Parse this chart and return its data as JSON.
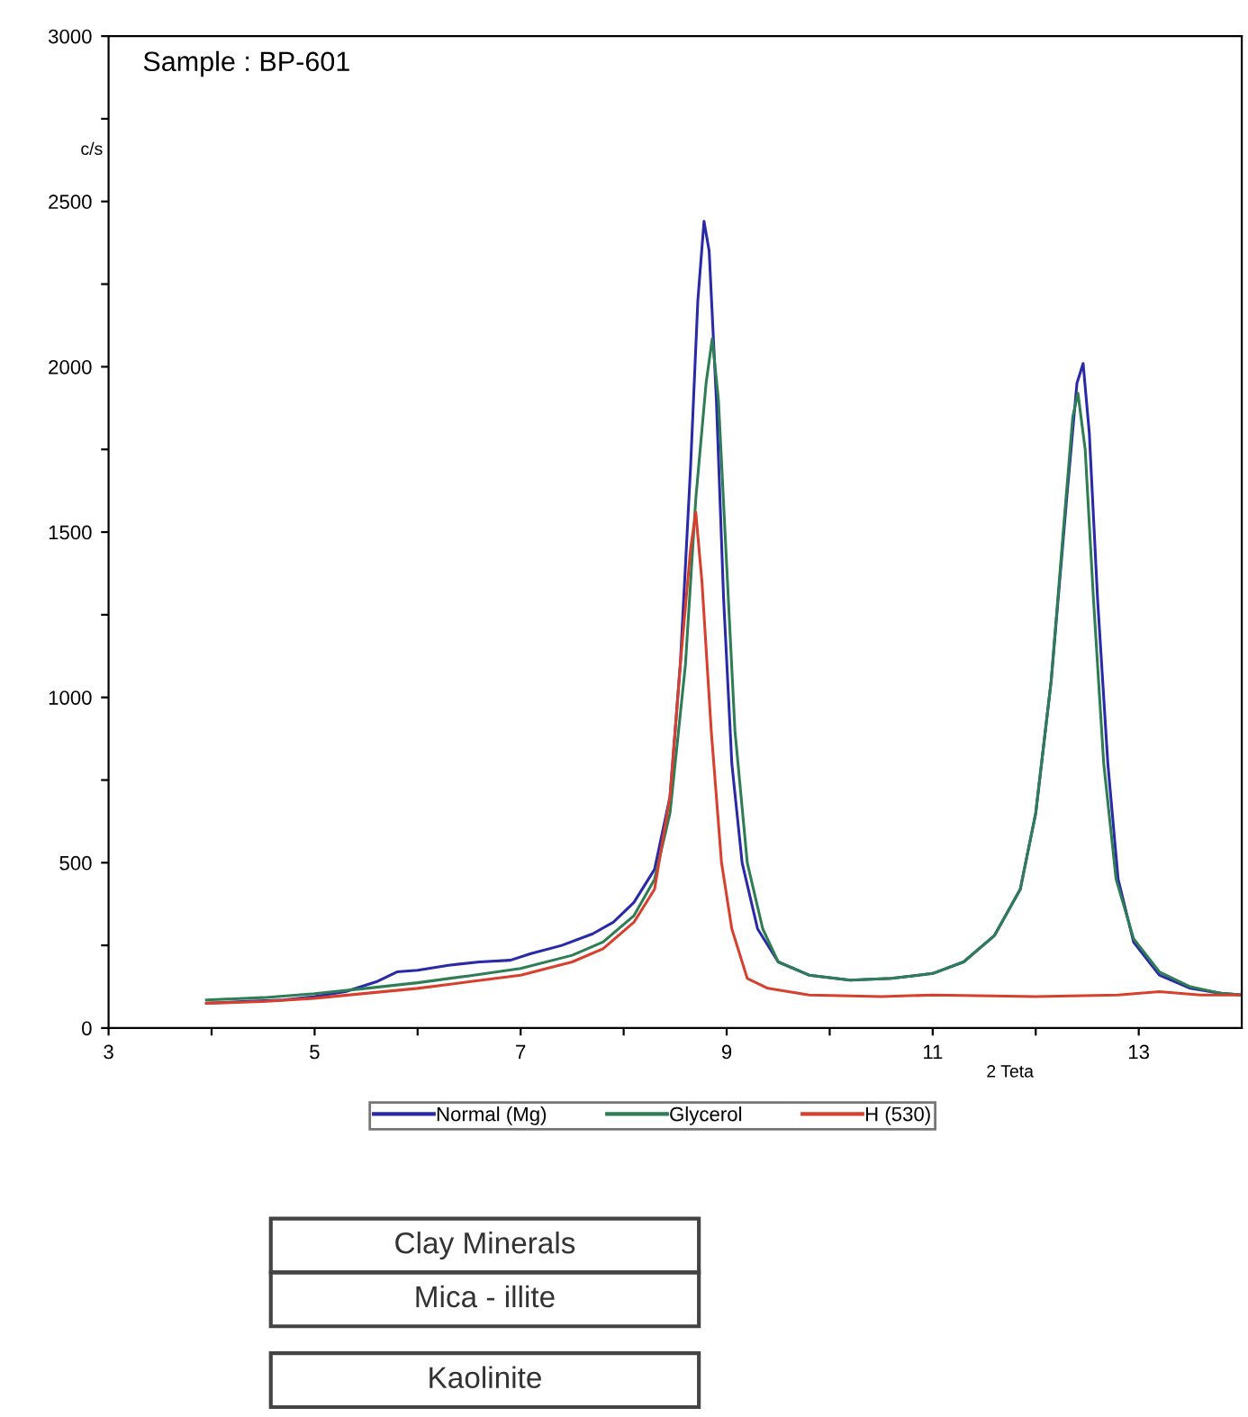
{
  "chart_data": {
    "type": "line",
    "title": "Sample : BP-601",
    "xlabel": "2 Teta",
    "ylabel": "c/s",
    "xlim": [
      3,
      14
    ],
    "ylim": [
      0,
      3000
    ],
    "xticks": [
      3,
      {
        "value": 4,
        "label": null
      },
      5,
      {
        "value": 6,
        "label": null
      },
      7,
      {
        "value": 8,
        "label": null
      },
      9,
      {
        "value": 10,
        "label": null
      },
      11,
      {
        "value": 12,
        "label": null
      },
      13
    ],
    "yticks": [
      0,
      {
        "value": 250,
        "label": null
      },
      500,
      {
        "value": 750,
        "label": null
      },
      1000,
      {
        "value": 1250,
        "label": null
      },
      1500,
      {
        "value": 1750,
        "label": null
      },
      2000,
      {
        "value": 2250,
        "label": null
      },
      2500,
      {
        "value": 2750,
        "label": null
      },
      3000
    ],
    "grid": false,
    "legend": "bottom",
    "marker": "none",
    "line_style": "solid",
    "annotations": [
      "Clay Minerals",
      "Mica - illite",
      "Kaolinite"
    ],
    "series": [
      {
        "name": "Normal (Mg)",
        "color": "#2a2aa8",
        "x": [
          3.95,
          4.3,
          4.7,
          5.0,
          5.3,
          5.6,
          5.8,
          6.0,
          6.3,
          6.6,
          6.9,
          7.1,
          7.4,
          7.7,
          7.9,
          8.1,
          8.3,
          8.45,
          8.55,
          8.65,
          8.72,
          8.78,
          8.83,
          8.9,
          8.97,
          9.05,
          9.15,
          9.3,
          9.5,
          9.8,
          10.2,
          10.6,
          11.0,
          11.3,
          11.6,
          11.85,
          12.0,
          12.15,
          12.3,
          12.4,
          12.46,
          12.52,
          12.6,
          12.7,
          12.8,
          12.95,
          13.2,
          13.5,
          13.8,
          14.0
        ],
        "values": [
          75,
          80,
          85,
          95,
          110,
          140,
          170,
          175,
          190,
          200,
          205,
          225,
          250,
          285,
          320,
          380,
          480,
          700,
          1100,
          1700,
          2200,
          2440,
          2350,
          1900,
          1300,
          800,
          500,
          300,
          200,
          160,
          145,
          150,
          165,
          200,
          280,
          420,
          650,
          1050,
          1600,
          1950,
          2010,
          1800,
          1300,
          800,
          450,
          260,
          160,
          120,
          105,
          100
        ]
      },
      {
        "name": "Glycerol",
        "color": "#2e7d55",
        "x": [
          3.95,
          4.5,
          5.0,
          5.5,
          6.0,
          6.5,
          7.0,
          7.5,
          7.8,
          8.1,
          8.3,
          8.45,
          8.6,
          8.7,
          8.8,
          8.86,
          8.92,
          9.0,
          9.08,
          9.2,
          9.35,
          9.5,
          9.8,
          10.2,
          10.6,
          11.0,
          11.3,
          11.6,
          11.85,
          12.0,
          12.15,
          12.28,
          12.36,
          12.41,
          12.48,
          12.56,
          12.66,
          12.78,
          12.95,
          13.2,
          13.5,
          13.8,
          14.0
        ],
        "values": [
          85,
          92,
          104,
          120,
          137,
          158,
          180,
          220,
          260,
          340,
          450,
          650,
          1100,
          1600,
          1950,
          2085,
          1900,
          1400,
          900,
          500,
          300,
          200,
          160,
          145,
          150,
          165,
          200,
          280,
          420,
          650,
          1050,
          1550,
          1850,
          1920,
          1750,
          1300,
          800,
          450,
          270,
          170,
          125,
          105,
          100
        ]
      },
      {
        "name": "H (530)",
        "color": "#d8402e",
        "x": [
          3.95,
          4.5,
          5.0,
          5.5,
          6.0,
          6.5,
          7.0,
          7.5,
          7.8,
          8.1,
          8.3,
          8.45,
          8.55,
          8.65,
          8.7,
          8.76,
          8.85,
          8.95,
          9.05,
          9.2,
          9.4,
          9.8,
          10.5,
          11.0,
          12.0,
          12.8,
          13.2,
          13.6,
          14.0
        ],
        "values": [
          75,
          80,
          90,
          105,
          120,
          140,
          160,
          200,
          240,
          320,
          420,
          700,
          1100,
          1450,
          1560,
          1350,
          900,
          500,
          300,
          150,
          120,
          100,
          95,
          100,
          95,
          100,
          110,
          100,
          100
        ]
      }
    ]
  }
}
